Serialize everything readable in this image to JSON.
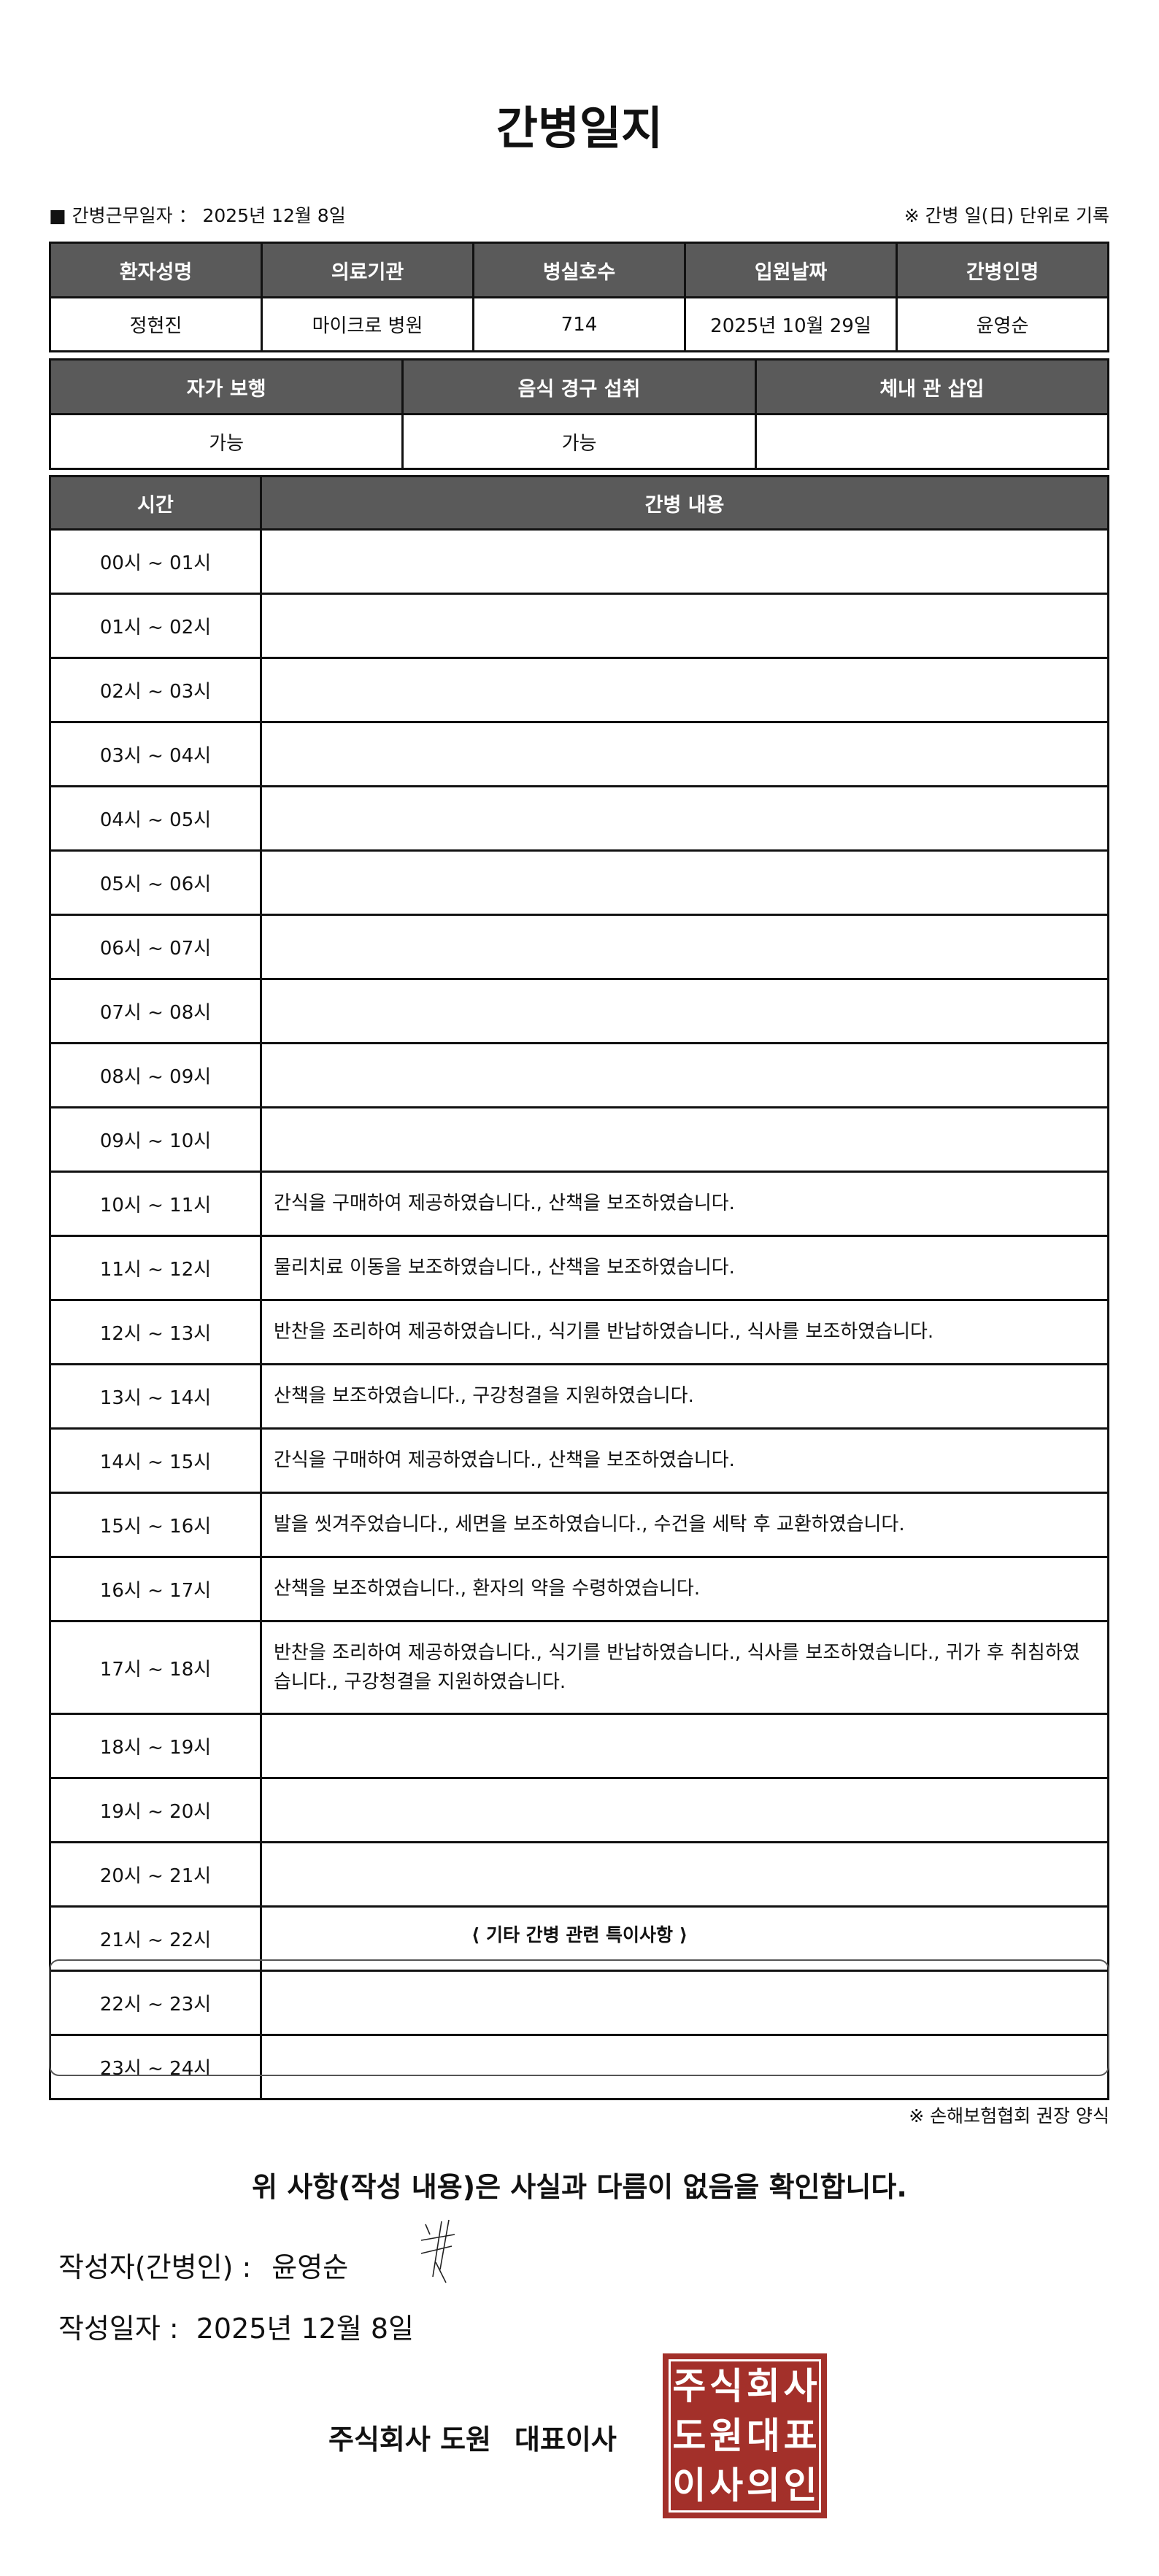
{
  "title": "간병일지",
  "work_date_label": "■ 간병근무일자 ：",
  "work_date": "2025년 12월 8일",
  "unit_note": "※ 간병 일(日) 단위로 기록",
  "patient_table": {
    "headers": [
      "환자성명",
      "의료기관",
      "병실호수",
      "입원날짜",
      "간병인명"
    ],
    "values": [
      "정현진",
      "마이크로 병원",
      "714",
      "2025년 10월 29일",
      "윤영순"
    ]
  },
  "status_table": {
    "headers": [
      "자가 보행",
      "음식 경구 섭취",
      "체내 관 삽입"
    ],
    "values": [
      "가능",
      "가능",
      ""
    ]
  },
  "log_table": {
    "headers": [
      "시간",
      "간병 내용"
    ],
    "rows": [
      {
        "time": "00시 ~ 01시",
        "content": ""
      },
      {
        "time": "01시 ~ 02시",
        "content": ""
      },
      {
        "time": "02시 ~ 03시",
        "content": ""
      },
      {
        "time": "03시 ~ 04시",
        "content": ""
      },
      {
        "time": "04시 ~ 05시",
        "content": ""
      },
      {
        "time": "05시 ~ 06시",
        "content": ""
      },
      {
        "time": "06시 ~ 07시",
        "content": ""
      },
      {
        "time": "07시 ~ 08시",
        "content": ""
      },
      {
        "time": "08시 ~ 09시",
        "content": ""
      },
      {
        "time": "09시 ~ 10시",
        "content": ""
      },
      {
        "time": "10시 ~ 11시",
        "content": "간식을 구매하여 제공하였습니다., 산책을 보조하였습니다."
      },
      {
        "time": "11시 ~ 12시",
        "content": "물리치료 이동을 보조하였습니다., 산책을 보조하였습니다."
      },
      {
        "time": "12시 ~ 13시",
        "content": "반찬을 조리하여 제공하였습니다., 식기를 반납하였습니다., 식사를 보조하였습니다."
      },
      {
        "time": "13시 ~ 14시",
        "content": "산책을 보조하였습니다., 구강청결을 지원하였습니다."
      },
      {
        "time": "14시 ~ 15시",
        "content": "간식을 구매하여 제공하였습니다., 산책을 보조하였습니다."
      },
      {
        "time": "15시 ~ 16시",
        "content": "발을 씻겨주었습니다., 세면을 보조하였습니다., 수건을 세탁 후 교환하였습니다."
      },
      {
        "time": "16시 ~ 17시",
        "content": "산책을 보조하였습니다., 환자의 약을 수령하였습니다."
      },
      {
        "time": "17시 ~ 18시",
        "content": "반찬을 조리하여 제공하였습니다., 식기를 반납하였습니다., 식사를 보조하였습니다., 귀가 후 취침하였습니다., 구강청결을 지원하였습니다."
      },
      {
        "time": "18시 ~ 19시",
        "content": ""
      },
      {
        "time": "19시 ~ 20시",
        "content": ""
      },
      {
        "time": "20시 ~ 21시",
        "content": ""
      },
      {
        "time": "21시 ~ 22시",
        "content": ""
      },
      {
        "time": "22시 ~ 23시",
        "content": ""
      },
      {
        "time": "23시 ~ 24시",
        "content": ""
      }
    ]
  },
  "etc_title": "⟨ 기타 간병 관련 특이사항 ⟩",
  "etc_content": "",
  "form_note": "※ 손해보험협회 권장 양식",
  "confirm_statement": "위 사항(작성 내용)은 사실과 다름이 없음을 확인합니다.",
  "writer_label": "작성자(간병인) :",
  "writer_name": "윤영순",
  "write_date_label": "작성일자 :",
  "write_date": "2025년 12월 8일",
  "company": "주식회사 도원",
  "representative": "대표이사",
  "stamp_text": "주식회사도원대표이사의인",
  "colors": {
    "header_bg": "#5a5a5a",
    "stamp": "#a3302a",
    "watermark_blue": "#dce9f5",
    "watermark_yellow": "#f6f7dc"
  }
}
